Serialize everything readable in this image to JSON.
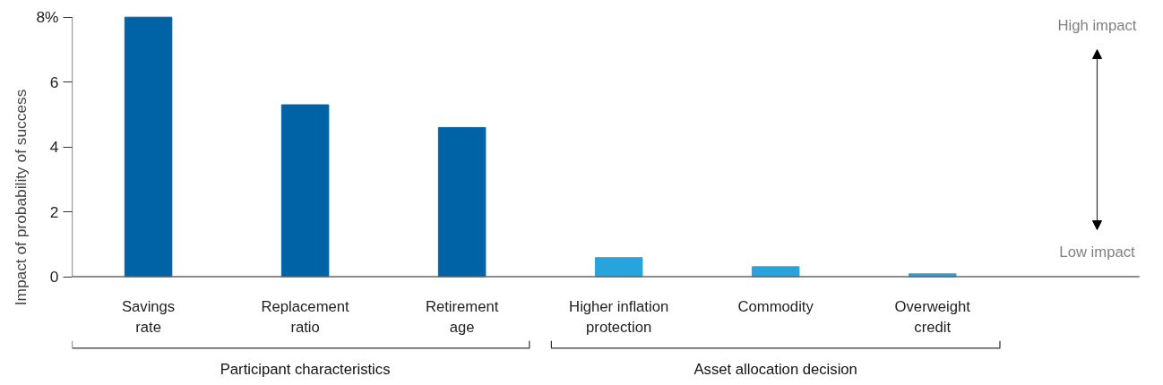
{
  "chart_data": {
    "type": "bar",
    "ylabel": "Impact of probability of success",
    "categories": [
      "Savings rate",
      "Replacement ratio",
      "Retirement age",
      "Higher inflation protection",
      "Commodity",
      "Overweight credit"
    ],
    "values": [
      8.0,
      5.3,
      4.6,
      0.59,
      0.31,
      0.09
    ],
    "colors": [
      "#0063a6",
      "#0063a6",
      "#0063a6",
      "#27a3dd",
      "#27a3dd",
      "#27a3dd"
    ],
    "ylim": [
      0,
      8
    ],
    "yticks": [
      0,
      2,
      4,
      6,
      {
        "value": 8,
        "label": "8%"
      }
    ],
    "annotations": [
      "Participant characteristics",
      "Asset allocation decision",
      "High impact",
      "Low impact"
    ]
  }
}
